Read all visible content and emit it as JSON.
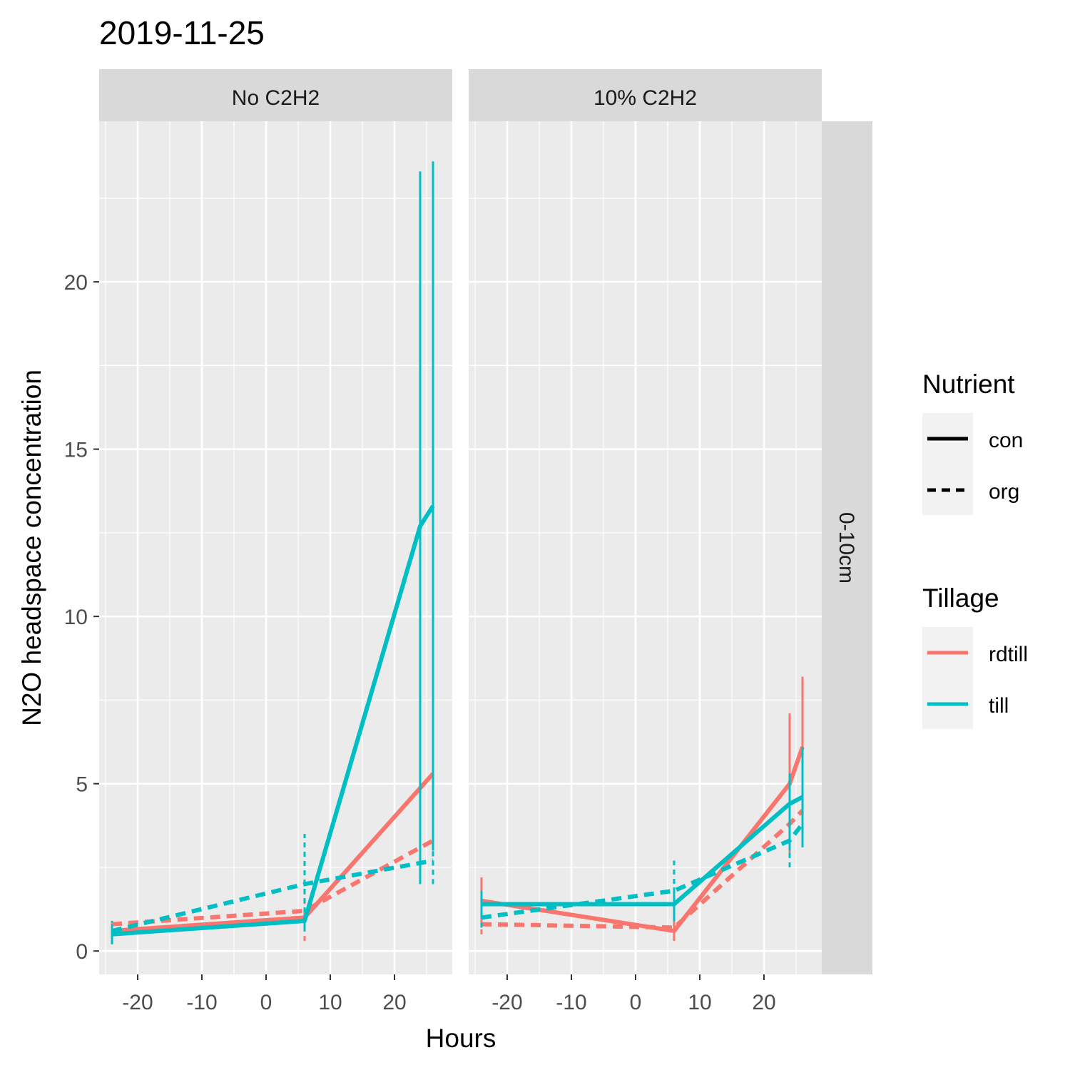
{
  "chart_data": {
    "type": "line",
    "title": "2019-11-25",
    "xlabel": "Hours",
    "ylabel": "N2O headspace concentration",
    "xlim": [
      -26,
      29
    ],
    "ylim": [
      -0.7,
      24.8
    ],
    "x_ticks": [
      -20,
      -10,
      0,
      10,
      20
    ],
    "y_ticks": [
      0,
      5,
      10,
      15,
      20
    ],
    "grid": true,
    "legend_placement": "right",
    "row_strip": "0-10cm",
    "colors": {
      "rdtill": "#F8766D",
      "till": "#00BFC4"
    },
    "legend": {
      "nutrient": {
        "title": "Nutrient",
        "items": [
          {
            "label": "con",
            "dash": "solid"
          },
          {
            "label": "org",
            "dash": "dashed"
          }
        ]
      },
      "tillage": {
        "title": "Tillage",
        "items": [
          {
            "label": "rdtill",
            "color": "#F8766D"
          },
          {
            "label": "till",
            "color": "#00BFC4"
          }
        ]
      }
    },
    "panels": [
      {
        "strip": "No C2H2",
        "series": [
          {
            "tillage": "rdtill",
            "nutrient": "con",
            "x": [
              -24,
              6,
              26
            ],
            "y": [
              0.6,
              1.0,
              5.3
            ],
            "err_x": [
              -24,
              6,
              24,
              26
            ],
            "err_lo": [
              0.3,
              0.8,
              3.0,
              3.0
            ],
            "err_hi": [
              0.9,
              1.3,
              6.3,
              4.9
            ]
          },
          {
            "tillage": "rdtill",
            "nutrient": "org",
            "x": [
              -24,
              6,
              26
            ],
            "y": [
              0.8,
              1.2,
              3.3
            ],
            "err_x": [
              -24,
              6,
              24,
              26
            ],
            "err_lo": [
              0.4,
              0.3,
              2.0,
              2.0
            ],
            "err_hi": [
              0.9,
              2.0,
              4.2,
              3.9
            ]
          },
          {
            "tillage": "till",
            "nutrient": "con",
            "x": [
              -24,
              6,
              24,
              26
            ],
            "y": [
              0.5,
              0.9,
              12.7,
              13.3
            ],
            "err_x": [
              -24,
              6,
              24,
              26
            ],
            "err_lo": [
              0.2,
              0.7,
              2.0,
              3.0
            ],
            "err_hi": [
              0.8,
              1.1,
              23.3,
              23.6
            ]
          },
          {
            "tillage": "till",
            "nutrient": "org",
            "x": [
              -24,
              6,
              26
            ],
            "y": [
              0.6,
              2.0,
              2.7
            ],
            "err_x": [
              -24,
              6,
              24,
              26
            ],
            "err_lo": [
              0.3,
              0.6,
              2.1,
              2.0
            ],
            "err_hi": [
              0.9,
              3.5,
              3.2,
              3.4
            ]
          }
        ]
      },
      {
        "strip": "10% C2H2",
        "series": [
          {
            "tillage": "rdtill",
            "nutrient": "con",
            "x": [
              -24,
              6,
              24,
              26
            ],
            "y": [
              1.5,
              0.6,
              5.0,
              6.1
            ],
            "err_x": [
              -24,
              6,
              24,
              26
            ],
            "err_lo": [
              0.9,
              0.4,
              2.9,
              4.0
            ],
            "err_hi": [
              2.2,
              0.9,
              7.1,
              8.2
            ]
          },
          {
            "tillage": "rdtill",
            "nutrient": "org",
            "x": [
              -24,
              6,
              24,
              26
            ],
            "y": [
              0.8,
              0.7,
              3.8,
              4.2
            ],
            "err_x": [
              -24,
              6,
              24,
              26
            ],
            "err_lo": [
              0.5,
              0.3,
              3.0,
              3.3
            ],
            "err_hi": [
              1.0,
              1.0,
              4.5,
              5.0
            ]
          },
          {
            "tillage": "till",
            "nutrient": "con",
            "x": [
              -24,
              6,
              24,
              26
            ],
            "y": [
              1.4,
              1.4,
              4.4,
              4.6
            ],
            "err_x": [
              -24,
              6,
              24,
              26
            ],
            "err_lo": [
              1.0,
              0.9,
              3.0,
              3.1
            ],
            "err_hi": [
              1.8,
              1.9,
              5.3,
              6.1
            ]
          },
          {
            "tillage": "till",
            "nutrient": "org",
            "x": [
              -24,
              6,
              24,
              26
            ],
            "y": [
              1.0,
              1.8,
              3.3,
              3.8
            ],
            "err_x": [
              -24,
              6,
              24,
              26
            ],
            "err_lo": [
              0.7,
              0.9,
              2.5,
              3.1
            ],
            "err_hi": [
              1.6,
              2.7,
              4.2,
              4.9
            ]
          }
        ]
      }
    ]
  }
}
